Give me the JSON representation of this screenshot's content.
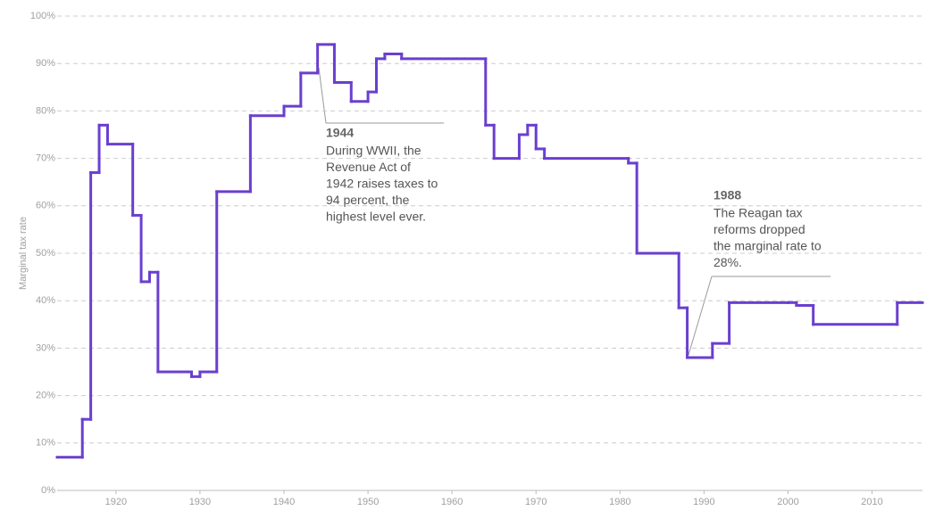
{
  "chart_data": {
    "type": "step-line",
    "y_label": "Marginal tax rate",
    "x": [
      1913,
      1916,
      1917,
      1918,
      1919,
      1922,
      1923,
      1924,
      1925,
      1929,
      1930,
      1932,
      1936,
      1940,
      1942,
      1944,
      1946,
      1948,
      1950,
      1951,
      1952,
      1954,
      1964,
      1965,
      1968,
      1969,
      1970,
      1971,
      1981,
      1982,
      1987,
      1988,
      1991,
      1993,
      2000,
      2001,
      2003,
      2013
    ],
    "values": [
      7,
      15,
      67,
      77,
      73,
      58,
      44,
      46,
      25,
      24,
      25,
      63,
      79,
      81,
      88,
      94,
      86,
      82,
      84,
      91,
      92,
      91,
      77,
      70,
      75,
      77,
      72,
      70,
      69,
      50,
      38.5,
      28,
      31,
      39.6,
      39.6,
      39,
      35,
      39.6
    ],
    "color": "#6a3fcf",
    "xlim": [
      1913,
      2016
    ],
    "ylim": [
      0,
      100
    ],
    "xticks": [
      1920,
      1930,
      1940,
      1950,
      1960,
      1970,
      1980,
      1990,
      2000,
      2010
    ],
    "yticks": [
      {
        "value": 0,
        "label": "0%"
      },
      {
        "value": 10,
        "label": "10%"
      },
      {
        "value": 20,
        "label": "20%"
      },
      {
        "value": 30,
        "label": "30%"
      },
      {
        "value": 40,
        "label": "40%"
      },
      {
        "value": 50,
        "label": "50%"
      },
      {
        "value": 60,
        "label": "60%"
      },
      {
        "value": 70,
        "label": "70%"
      },
      {
        "value": 80,
        "label": "80%"
      },
      {
        "value": 90,
        "label": "90%"
      },
      {
        "value": 100,
        "label": "100%"
      }
    ],
    "grid": true,
    "annotations": [
      {
        "title": "1944",
        "lines": [
          "During WWII, the",
          "Revenue Act of",
          "1942 raises taxes to",
          "94 percent, the",
          "highest level ever."
        ]
      },
      {
        "title": "1988",
        "lines": [
          "The Reagan tax",
          "reforms dropped",
          "the marginal rate to",
          "28%."
        ]
      }
    ]
  }
}
